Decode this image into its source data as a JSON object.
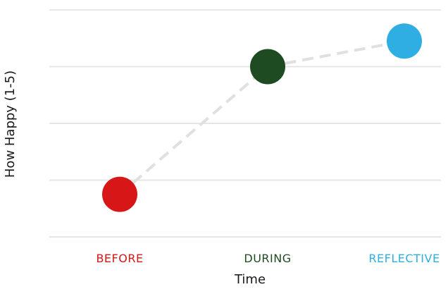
{
  "chart_data": {
    "type": "scatter",
    "title": "",
    "xlabel": "Time",
    "ylabel": "How Happy (1-5)",
    "categories": [
      "BEFORE",
      "DURING",
      "REFLECTIVE"
    ],
    "values": [
      1.75,
      4.0,
      4.45
    ],
    "ylim": [
      1,
      5
    ],
    "grid": true,
    "connector": "dashed",
    "colors": [
      "#d71618",
      "#1e4b22",
      "#2eaee3"
    ],
    "connector_color": "#e0e0e0",
    "grid_color": "#e6e6e6"
  }
}
